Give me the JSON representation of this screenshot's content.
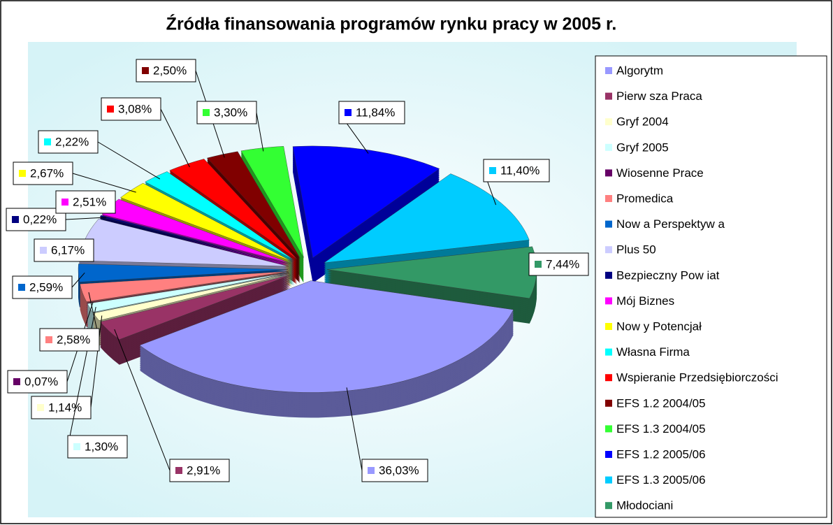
{
  "chart_data": {
    "type": "pie",
    "title": "Źródła finansowania programów rynku pracy w 2005 r.",
    "categories": [
      "Algorytm",
      "Pierw sza Praca",
      "Gryf 2004",
      "Gryf 2005",
      "Wiosenne Prace",
      "Promedica",
      "Now a Perspektyw a",
      "Plus 50",
      "Bezpieczny Pow iat",
      "Mój Biznes",
      "Now y Potencjał",
      "Własna Firma",
      "Wspieranie Przedsiębiorczości",
      "EFS 1.2 2004/05",
      "EFS 1.3 2004/05",
      "EFS 1.2 2005/06",
      "EFS 1.3 2005/06",
      "Młodociani"
    ],
    "values": [
      36.03,
      2.91,
      1.14,
      1.3,
      0.07,
      2.58,
      2.59,
      6.17,
      0.22,
      2.51,
      2.67,
      2.22,
      3.08,
      2.5,
      3.3,
      11.84,
      11.4,
      7.44
    ],
    "value_labels": [
      "36,03%",
      "2,91%",
      "1,14%",
      "1,30%",
      "0,07%",
      "2,58%",
      "2,59%",
      "6,17%",
      "0,22%",
      "2,51%",
      "2,67%",
      "2,22%",
      "3,08%",
      "2,50%",
      "3,30%",
      "11,84%",
      "11,40%",
      "7,44%"
    ],
    "colors": [
      "#9999ff",
      "#993366",
      "#ffffcc",
      "#ccffff",
      "#660066",
      "#ff8080",
      "#0066cc",
      "#ccccff",
      "#000080",
      "#ff00ff",
      "#ffff00",
      "#00ffff",
      "#ff0000",
      "#800000",
      "#33ff33",
      "#0000ff",
      "#00ccff",
      "#339966"
    ],
    "legend": "right"
  }
}
